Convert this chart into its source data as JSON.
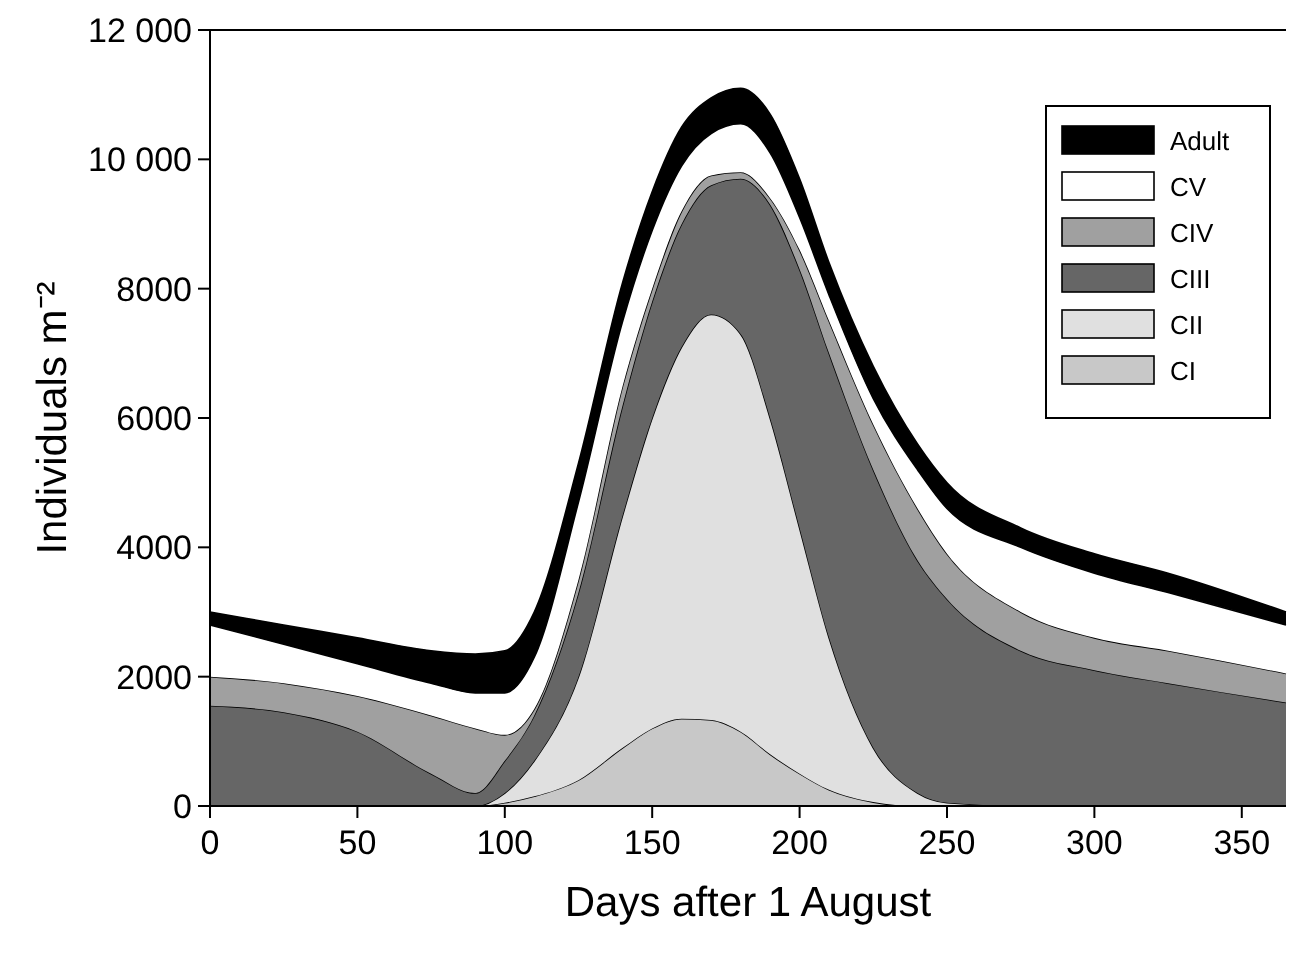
{
  "chart_data": {
    "type": "area",
    "stacked": true,
    "xlabel": "Days after 1 August",
    "ylabel": "Individuals m⁻²",
    "x": [
      0,
      25,
      50,
      75,
      90,
      100,
      110,
      125,
      140,
      150,
      160,
      170,
      180,
      190,
      200,
      210,
      225,
      240,
      250,
      275,
      300,
      325,
      365
    ],
    "xlim": [
      0,
      365
    ],
    "xticks": [
      0,
      50,
      100,
      150,
      200,
      250,
      300,
      350
    ],
    "ylim": [
      0,
      12000
    ],
    "yticks": [
      0,
      2000,
      4000,
      6000,
      8000,
      {
        "value": 10000,
        "label": "10 000"
      },
      {
        "value": 12000,
        "label": "12 000"
      }
    ],
    "legend": "top right",
    "grid": false,
    "series": [
      {
        "name": "CI",
        "color": "#c8c8c8",
        "values": [
          0,
          0,
          0,
          0,
          0,
          50,
          150,
          400,
          900,
          1200,
          1350,
          1330,
          1150,
          800,
          500,
          250,
          60,
          0,
          0,
          0,
          0,
          0,
          0
        ]
      },
      {
        "name": "CII",
        "color": "#e0e0e0",
        "values": [
          0,
          0,
          0,
          0,
          0,
          150,
          550,
          1600,
          3600,
          4800,
          5750,
          6270,
          6150,
          5200,
          3800,
          2350,
          840,
          200,
          50,
          0,
          0,
          0,
          0
        ]
      },
      {
        "name": "CIII",
        "color": "#666666",
        "values": [
          1550,
          1450,
          1150,
          500,
          200,
          500,
          700,
          1300,
          1700,
          1800,
          1900,
          2000,
          2400,
          3300,
          4000,
          4400,
          4300,
          3600,
          3150,
          2400,
          2100,
          1900,
          1600
        ]
      },
      {
        "name": "CIV",
        "color": "#a0a0a0",
        "values": [
          450,
          450,
          550,
          900,
          1000,
          400,
          100,
          200,
          300,
          200,
          200,
          150,
          100,
          100,
          300,
          500,
          700,
          800,
          700,
          600,
          500,
          500,
          450
        ]
      },
      {
        "name": "CV",
        "color": "#ffffff",
        "values": [
          800,
          600,
          500,
          500,
          550,
          650,
          800,
          1200,
          1000,
          900,
          700,
          650,
          750,
          700,
          500,
          400,
          400,
          600,
          700,
          1000,
          1000,
          900,
          750
        ]
      },
      {
        "name": "Adult",
        "color": "#000000",
        "values": [
          200,
          300,
          400,
          500,
          600,
          650,
          700,
          600,
          600,
          600,
          600,
          550,
          550,
          600,
          600,
          500,
          500,
          400,
          400,
          300,
          300,
          300,
          200
        ]
      }
    ]
  }
}
